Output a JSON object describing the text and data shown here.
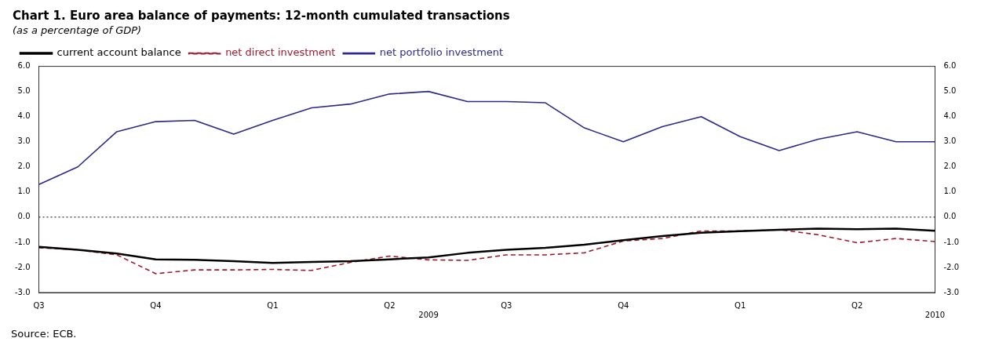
{
  "chart_data": {
    "type": "line",
    "title": "Chart 1. Euro area balance of payments: 12-month cumulated transactions",
    "subtitle": "(as a percentage of GDP)",
    "categories": [
      "Q3",
      null,
      null,
      "Q4",
      null,
      null,
      "Q1",
      null,
      null,
      "Q2",
      "\n2009",
      null,
      "Q3",
      null,
      null,
      "Q4",
      null,
      null,
      "Q1",
      null,
      null,
      "Q2",
      null,
      "\n2010"
    ],
    "series": [
      {
        "name": "current account balance",
        "color": "#000000",
        "line_style": "solid",
        "values": [
          -1.18,
          -1.3,
          -1.45,
          -1.68,
          -1.7,
          -1.75,
          -1.82,
          -1.78,
          -1.75,
          -1.68,
          -1.6,
          -1.42,
          -1.3,
          -1.22,
          -1.1,
          -0.92,
          -0.75,
          -0.62,
          -0.56,
          -0.5,
          -0.46,
          -0.48,
          -0.46,
          -0.54
        ]
      },
      {
        "name": "net direct investment",
        "color": "#a0182c",
        "line_style": "dashed",
        "values": [
          -1.22,
          -1.3,
          -1.5,
          -2.25,
          -2.1,
          -2.1,
          -2.08,
          -2.12,
          -1.8,
          -1.55,
          -1.7,
          -1.72,
          -1.5,
          -1.5,
          -1.42,
          -0.95,
          -0.85,
          -0.55,
          -0.55,
          -0.5,
          -0.7,
          -1.02,
          -0.85,
          -0.97
        ]
      },
      {
        "name": "net portfolio investment",
        "color": "#2a2a8c",
        "line_style": "solid",
        "values": [
          1.3,
          2.0,
          3.4,
          3.8,
          3.85,
          3.3,
          3.85,
          4.35,
          4.5,
          4.9,
          5.0,
          4.6,
          4.6,
          4.55,
          3.55,
          3.0,
          3.6,
          4.0,
          3.2,
          2.65,
          3.1,
          3.4,
          3.0,
          3.0
        ]
      }
    ],
    "ylim": [
      -3,
      6
    ],
    "yticks": [
      {
        "value": -3,
        "label": "-3.0"
      },
      {
        "value": -2,
        "label": "-2.0"
      },
      {
        "value": -1,
        "label": "-1.0"
      },
      {
        "value": 0,
        "label": "0.0"
      },
      {
        "value": 1,
        "label": "1.0"
      },
      {
        "value": 2,
        "label": "2.0"
      },
      {
        "value": 3,
        "label": "3.0"
      },
      {
        "value": 4,
        "label": "4.0"
      },
      {
        "value": 5,
        "label": "5.0"
      },
      {
        "value": 6,
        "label": "6.0"
      }
    ],
    "y2lim": [
      -3,
      6
    ],
    "y2ticks": [
      {
        "value": -3,
        "label": "-3.0"
      },
      {
        "value": -2,
        "label": "-2.0"
      },
      {
        "value": -1,
        "label": "-1.0"
      },
      {
        "value": 0,
        "label": "0.0"
      },
      {
        "value": 1,
        "label": "1.0"
      },
      {
        "value": 2,
        "label": "2.0"
      },
      {
        "value": 3,
        "label": "3.0"
      },
      {
        "value": 4,
        "label": "4.0"
      },
      {
        "value": 5,
        "label": "5.0"
      },
      {
        "value": 6,
        "label": "6.0"
      }
    ],
    "ref_lines": [
      {
        "axis": "y",
        "value": 0,
        "color": "#000000",
        "line_style": "dotted"
      }
    ],
    "grid": false,
    "legend": "top left",
    "marker": "none",
    "annotations": [
      "Source: ECB."
    ]
  }
}
